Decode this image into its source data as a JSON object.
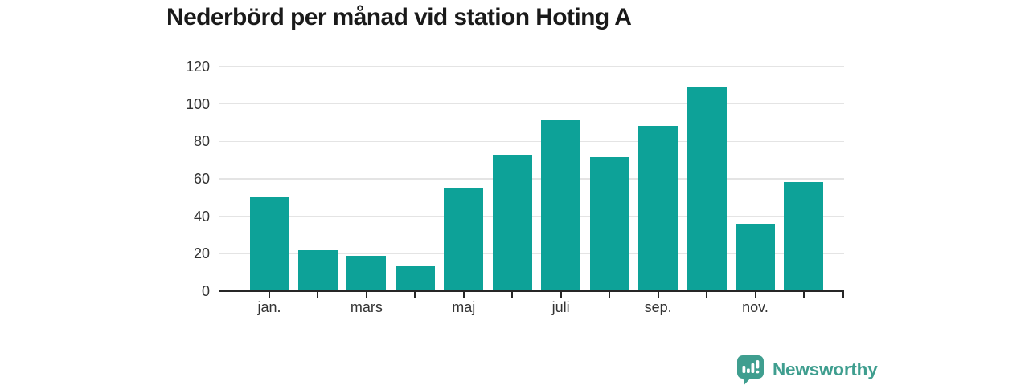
{
  "title": "Nederbörd per månad vid station Hoting A",
  "branding": {
    "logo_text": "Newsworthy",
    "logo_icon": "speech-bubble-bar-chart-icon",
    "brand_color": "#3f9e8f"
  },
  "colors": {
    "bar": "#0da298",
    "gridline": "#e4e4e4",
    "axis": "#262626",
    "tick_label": "#333333",
    "title": "#1a1a1a",
    "background": "#ffffff"
  },
  "chart_data": {
    "type": "bar",
    "title": "Nederbörd per månad vid station Hoting A",
    "categories": [
      "jan.",
      "",
      "mars",
      "",
      "maj",
      "",
      "juli",
      "",
      "sep.",
      "",
      "nov.",
      ""
    ],
    "values": [
      50,
      22,
      19,
      13.5,
      55,
      73,
      91.5,
      71.5,
      88.5,
      109,
      36,
      58.5
    ],
    "yticks": [
      0,
      20,
      40,
      60,
      80,
      100,
      120
    ],
    "ylim": [
      0,
      120
    ],
    "xlabel": "",
    "ylabel": "",
    "grid": "horizontal",
    "legend": "none",
    "bar_color": "#0da298"
  }
}
